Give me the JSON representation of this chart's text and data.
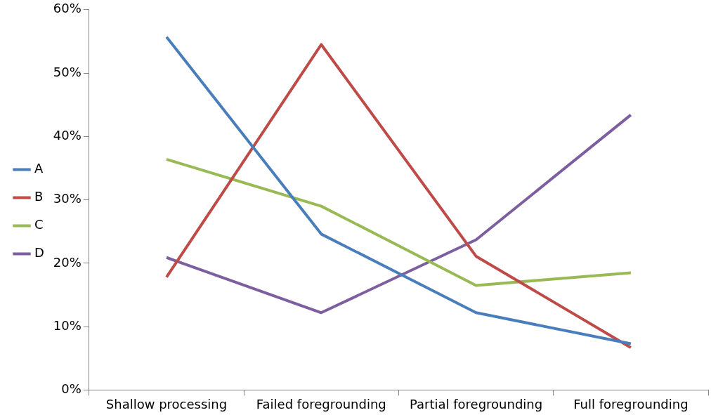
{
  "chart_data": {
    "type": "line",
    "categories": [
      "Shallow processing",
      "Failed foregrounding",
      "Partial foregrounding",
      "Full foregrounding"
    ],
    "series": [
      {
        "name": "A",
        "color": "#4a7ebb",
        "values": [
          55.7,
          24.6,
          12.2,
          7.3
        ]
      },
      {
        "name": "B",
        "color": "#be4b48",
        "values": [
          17.8,
          54.5,
          21.1,
          6.7
        ]
      },
      {
        "name": "C",
        "color": "#98b954",
        "values": [
          36.4,
          29.0,
          16.5,
          18.5
        ]
      },
      {
        "name": "D",
        "color": "#7d5fa0",
        "values": [
          20.9,
          12.2,
          23.7,
          43.4
        ]
      }
    ],
    "ylim": [
      0,
      60
    ],
    "yticks": [
      {
        "value": 0,
        "label": "0%"
      },
      {
        "value": 10,
        "label": "10%"
      },
      {
        "value": 20,
        "label": "20%"
      },
      {
        "value": 30,
        "label": "30%"
      },
      {
        "value": 40,
        "label": "40%"
      },
      {
        "value": 50,
        "label": "50%"
      },
      {
        "value": 60,
        "label": "60%"
      }
    ],
    "grid": false,
    "legend": "left",
    "marker": "none"
  }
}
